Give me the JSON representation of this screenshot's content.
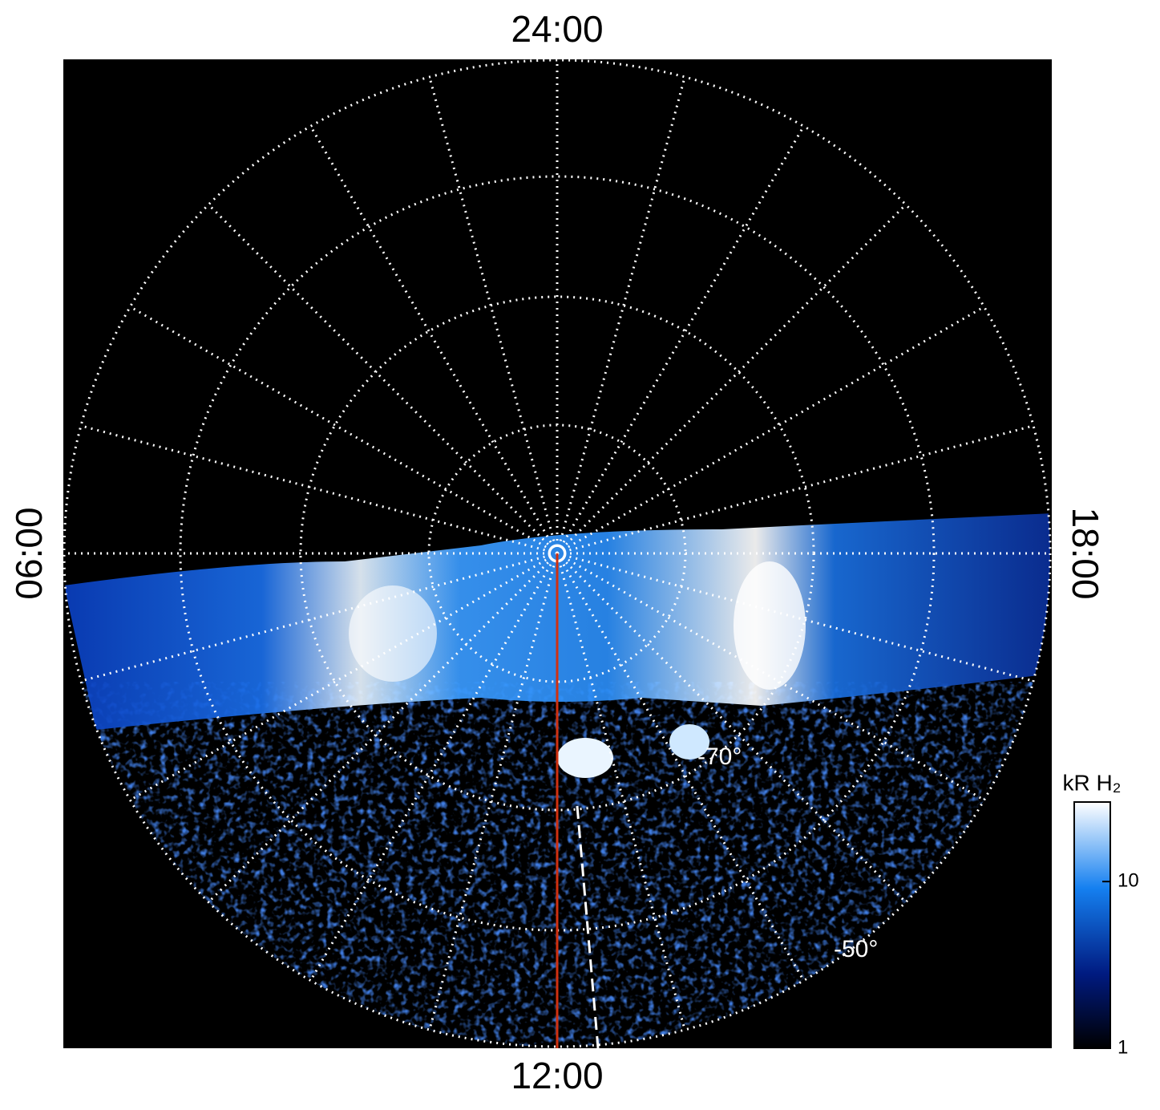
{
  "chart_data": {
    "type": "polar-image",
    "local_time_labels": {
      "top": "24:00",
      "bottom": "12:00",
      "left": "06:00",
      "right": "18:00"
    },
    "latitude_labels": [
      "-70°",
      "-50°"
    ],
    "colorbar": {
      "label": "kR H₂",
      "scale": "log",
      "range": [
        1,
        30
      ],
      "ticks": [
        1,
        10
      ]
    }
  }
}
